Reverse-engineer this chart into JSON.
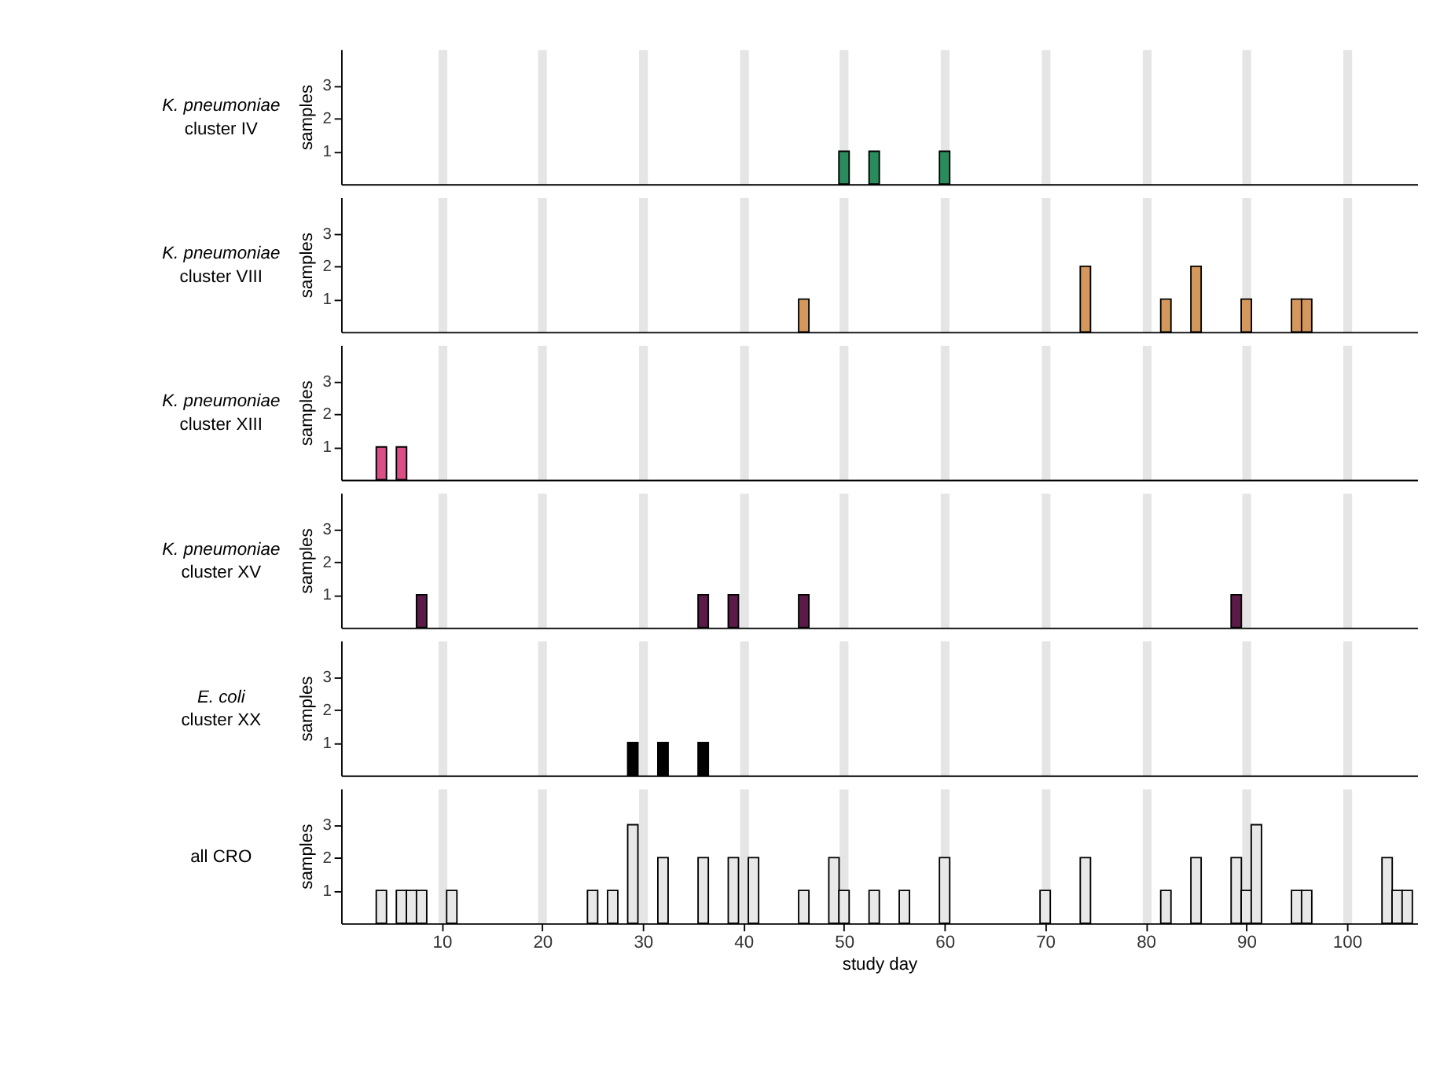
{
  "chart_data": [
    {
      "type": "bar",
      "title": "K. pneumoniae cluster IV",
      "ylabel": "samples",
      "x": [
        50,
        53,
        60
      ],
      "values": [
        1,
        1,
        1
      ],
      "color": "#2a8c5c",
      "xlim": [
        0,
        107
      ],
      "xticks": [
        10,
        20,
        30,
        40,
        50,
        60,
        70,
        80,
        90,
        100
      ],
      "ylim": [
        0,
        4.1
      ],
      "yticks": [
        1,
        2,
        3
      ],
      "grid": "x",
      "tick_labels": "y"
    },
    {
      "type": "bar",
      "title": "K. pneumoniae cluster VIII",
      "ylabel": "samples",
      "x": [
        46,
        74,
        82,
        85,
        90,
        95,
        96
      ],
      "values": [
        1,
        2,
        1,
        2,
        1,
        1,
        1
      ],
      "color": "#d4985c",
      "xlim": [
        0,
        107
      ],
      "xticks": [
        10,
        20,
        30,
        40,
        50,
        60,
        70,
        80,
        90,
        100
      ],
      "ylim": [
        0,
        4.1
      ],
      "yticks": [
        1,
        2,
        3
      ],
      "grid": "x",
      "tick_labels": "y"
    },
    {
      "type": "bar",
      "title": "K. pneumoniae cluster XIII",
      "ylabel": "samples",
      "x": [
        4,
        6
      ],
      "values": [
        1,
        1
      ],
      "color": "#d94f86",
      "xlim": [
        0,
        107
      ],
      "xticks": [
        10,
        20,
        30,
        40,
        50,
        60,
        70,
        80,
        90,
        100
      ],
      "ylim": [
        0,
        4.1
      ],
      "yticks": [
        1,
        2,
        3
      ],
      "grid": "x",
      "tick_labels": "y"
    },
    {
      "type": "bar",
      "title": "K. pneumoniae cluster XV",
      "ylabel": "samples",
      "x": [
        8,
        36,
        39,
        46,
        89
      ],
      "values": [
        1,
        1,
        1,
        1,
        1
      ],
      "color": "#5c1a48",
      "xlim": [
        0,
        107
      ],
      "xticks": [
        10,
        20,
        30,
        40,
        50,
        60,
        70,
        80,
        90,
        100
      ],
      "ylim": [
        0,
        4.1
      ],
      "yticks": [
        1,
        2,
        3
      ],
      "grid": "x",
      "tick_labels": "y"
    },
    {
      "type": "bar",
      "title": "E. coli cluster XX",
      "ylabel": "samples",
      "x": [
        29,
        32,
        36
      ],
      "values": [
        1,
        1,
        1
      ],
      "color": "#000000",
      "xlim": [
        0,
        107
      ],
      "xticks": [
        10,
        20,
        30,
        40,
        50,
        60,
        70,
        80,
        90,
        100
      ],
      "ylim": [
        0,
        4.1
      ],
      "yticks": [
        1,
        2,
        3
      ],
      "grid": "x",
      "tick_labels": "y"
    },
    {
      "type": "bar",
      "title": "all CRO",
      "ylabel": "samples",
      "xlabel": "study day",
      "x": [
        4,
        6,
        7,
        8,
        11,
        25,
        27,
        29,
        32,
        36,
        39,
        41,
        46,
        49,
        50,
        53,
        56,
        60,
        70,
        74,
        82,
        85,
        89,
        90,
        91,
        95,
        96,
        104,
        105,
        106
      ],
      "values": [
        1,
        1,
        1,
        1,
        1,
        1,
        1,
        3,
        2,
        2,
        2,
        2,
        1,
        2,
        1,
        1,
        1,
        2,
        1,
        2,
        1,
        2,
        2,
        1,
        3,
        1,
        1,
        2,
        1,
        1
      ],
      "color": "#e8e8e8",
      "xlim": [
        0,
        107
      ],
      "xticks": [
        10,
        20,
        30,
        40,
        50,
        60,
        70,
        80,
        90,
        100
      ],
      "ylim": [
        0,
        4.1
      ],
      "yticks": [
        1,
        2,
        3
      ],
      "grid": "x"
    }
  ]
}
